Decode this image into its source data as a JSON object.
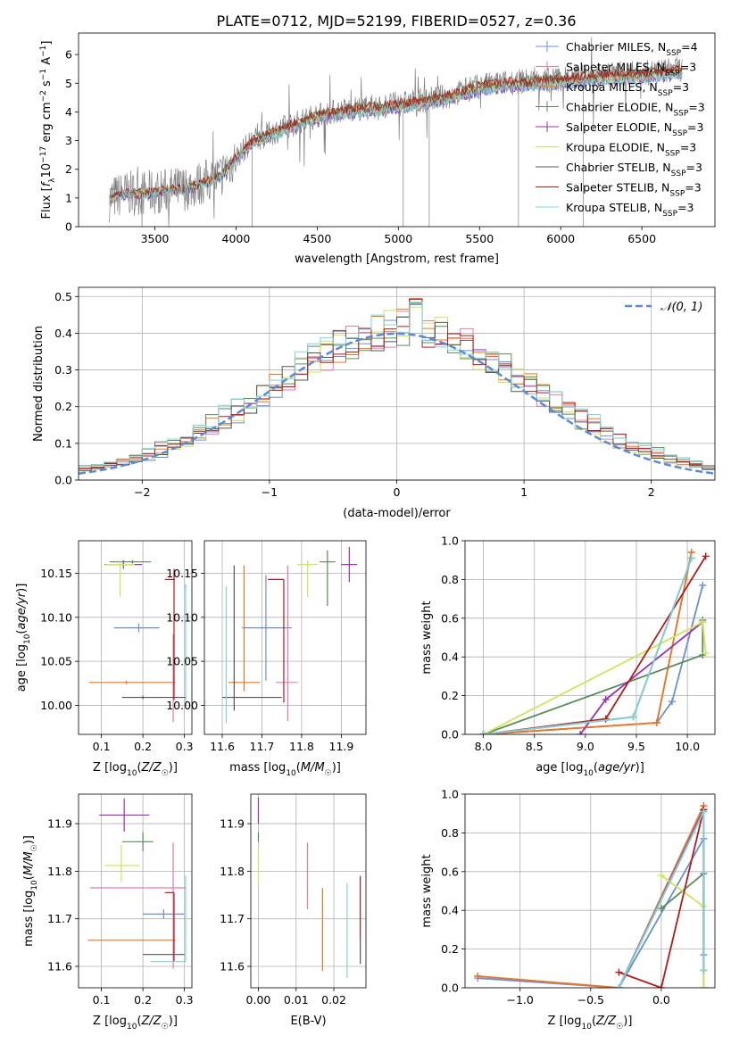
{
  "figure_title": "PLATE=0712, MJD=52199, FIBERID=0527, z=0.36",
  "colors": {
    "chabrier_miles": "#6a8fd6",
    "salpeter_miles": "#e07bb0",
    "kroupa_miles": "#e8771e",
    "chabrier_elodie": "#5a8a5a",
    "salpeter_elodie": "#9b2fb0",
    "kroupa_elodie": "#cde55a",
    "chabrier_stelib": "#555555",
    "salpeter_stelib": "#b51a1a",
    "kroupa_stelib": "#7fd3d8",
    "data": "#808080",
    "grid": "#b0b0b0"
  },
  "chart_data": [
    {
      "type": "line",
      "id": "spectrum",
      "xlabel": "wavelength [Angstrom, rest frame]",
      "ylabel": "Flux [f_λ 10^-17 erg cm^-2 s^-1 A^-1]",
      "xlim": [
        3030,
        6950
      ],
      "ylim": [
        0,
        6.75
      ],
      "xticks": [
        3500,
        4000,
        4500,
        5000,
        5500,
        6000,
        6500
      ],
      "yticks": [
        0,
        1,
        2,
        3,
        4,
        5,
        6
      ],
      "grid": false,
      "legend_position": "right",
      "continuum": {
        "x": [
          3220,
          3300,
          3500,
          3700,
          3900,
          4000,
          4100,
          4300,
          4500,
          4700,
          4900,
          5100,
          5300,
          5500,
          5700,
          5900,
          6100,
          6300,
          6500,
          6750
        ],
        "y": [
          0.95,
          1.15,
          1.2,
          1.35,
          1.75,
          2.4,
          3.0,
          3.45,
          3.9,
          4.1,
          4.2,
          4.35,
          4.55,
          4.9,
          5.05,
          5.1,
          5.2,
          5.3,
          5.35,
          5.5
        ]
      },
      "series": [
        {
          "name": "Chabrier MILES, N_SSP=4",
          "color_key": "chabrier_miles"
        },
        {
          "name": "Salpeter MILES, N_SSP=3",
          "color_key": "salpeter_miles"
        },
        {
          "name": "Kroupa MILES, N_SSP=3",
          "color_key": "kroupa_miles"
        },
        {
          "name": "Chabrier ELODIE, N_SSP=3",
          "color_key": "chabrier_elodie"
        },
        {
          "name": "Salpeter ELODIE, N_SSP=3",
          "color_key": "salpeter_elodie"
        },
        {
          "name": "Kroupa ELODIE, N_SSP=3",
          "color_key": "kroupa_elodie"
        },
        {
          "name": "Chabrier STELIB, N_SSP=3",
          "color_key": "chabrier_stelib"
        },
        {
          "name": "Salpeter STELIB, N_SSP=3",
          "color_key": "salpeter_stelib"
        },
        {
          "name": "Kroupa STELIB, N_SSP=3",
          "color_key": "kroupa_stelib"
        }
      ]
    },
    {
      "type": "line",
      "id": "residuals",
      "xlabel": "(data-model)/error",
      "ylabel": "Normed distribution",
      "xlim": [
        -2.5,
        2.5
      ],
      "ylim": [
        0,
        0.525
      ],
      "xticks": [
        -2,
        -1,
        0,
        1,
        2
      ],
      "yticks": [
        0.0,
        0.1,
        0.2,
        0.3,
        0.4,
        0.5
      ],
      "grid": true,
      "legend_position": "top-right",
      "reference": {
        "name": "𝒩(0, 1)",
        "mean": 0,
        "sigma": 1
      },
      "histogram": {
        "bin_edges_start": -2.5,
        "bin_width": 0.1,
        "nbins": 50,
        "shape_sigma": 1.05,
        "shape_mean": 0.05,
        "shape_peak": 0.4
      }
    },
    {
      "type": "scatter",
      "id": "age_vs_Z",
      "xlabel": "Z [log10(Z/Z☉)]",
      "ylabel": "age [log10(age/yr)]",
      "xlim": [
        0.045,
        0.318
      ],
      "ylim": [
        9.967,
        10.187
      ],
      "xticks": [
        0.1,
        0.2,
        0.3
      ],
      "yticks": [
        10.0,
        10.05,
        10.1,
        10.15
      ],
      "grid": true,
      "points": [
        {
          "key": "chabrier_miles",
          "x": 0.19,
          "y": 10.088,
          "xerr": [
            0.06,
            0.05
          ],
          "yerr": [
            0.005,
            0.005
          ]
        },
        {
          "key": "salpeter_miles",
          "x": 0.273,
          "y": 10.026,
          "xerr": [
            0.005,
            0.005
          ],
          "yerr": [
            0.045,
            0.055
          ]
        },
        {
          "key": "kroupa_miles",
          "x": 0.16,
          "y": 10.026,
          "xerr": [
            0.09,
            0.11
          ],
          "yerr": [
            0.002,
            0.002
          ]
        },
        {
          "key": "chabrier_elodie",
          "x": 0.175,
          "y": 10.163,
          "xerr": [
            0.055,
            0.045
          ],
          "yerr": [
            0.002,
            0.002
          ]
        },
        {
          "key": "salpeter_elodie",
          "x": 0.153,
          "y": 10.16,
          "xerr": [
            0.045,
            0.045
          ],
          "yerr": [
            0.005,
            0.005
          ]
        },
        {
          "key": "kroupa_elodie",
          "x": 0.145,
          "y": 10.16,
          "xerr": [
            0.035,
            0.035
          ],
          "yerr": [
            0.037,
            0.005
          ]
        },
        {
          "key": "chabrier_stelib",
          "x": 0.2,
          "y": 10.009,
          "xerr": [
            0.05,
            0.105
          ],
          "yerr": [
            0.002,
            0.002
          ]
        },
        {
          "key": "salpeter_stelib",
          "x": 0.275,
          "y": 10.143,
          "xerr": [
            0.022,
            0.002
          ],
          "yerr": [
            0.137,
            0.012
          ]
        },
        {
          "key": "kroupa_stelib",
          "x": 0.303,
          "y": 10.135,
          "xerr": [
            0.002,
            0.002
          ],
          "yerr": [
            0.135,
            0.003
          ]
        }
      ]
    },
    {
      "type": "scatter",
      "id": "age_vs_mass",
      "xlabel": "mass [log10(M/M☉)]",
      "ylabel": "",
      "xlim": [
        11.555,
        11.962
      ],
      "ylim": [
        9.967,
        10.187
      ],
      "xticks": [
        11.6,
        11.7,
        11.8,
        11.9
      ],
      "yticks": [
        10.0,
        10.05,
        10.1,
        10.15
      ],
      "grid": true,
      "points": [
        {
          "key": "chabrier_miles",
          "x": 11.71,
          "y": 10.088,
          "xerr": [
            0.06,
            0.065
          ],
          "yerr": [
            0.06,
            0.06
          ]
        },
        {
          "key": "salpeter_miles",
          "x": 11.765,
          "y": 10.026,
          "xerr": [
            0.03,
            0.025
          ],
          "yerr": [
            0.044,
            0.133
          ]
        },
        {
          "key": "kroupa_miles",
          "x": 11.655,
          "y": 10.026,
          "xerr": [
            0.04,
            0.04
          ],
          "yerr": [
            0.01,
            0.133
          ]
        },
        {
          "key": "chabrier_elodie",
          "x": 11.865,
          "y": 10.163,
          "xerr": [
            0.02,
            0.02
          ],
          "yerr": [
            0.05,
            0.013
          ]
        },
        {
          "key": "salpeter_elodie",
          "x": 11.92,
          "y": 10.16,
          "xerr": [
            0.02,
            0.02
          ],
          "yerr": [
            0.02,
            0.02
          ]
        },
        {
          "key": "kroupa_elodie",
          "x": 11.815,
          "y": 10.16,
          "xerr": [
            0.025,
            0.025
          ],
          "yerr": [
            0.037,
            0.005
          ]
        },
        {
          "key": "chabrier_stelib",
          "x": 11.63,
          "y": 10.009,
          "xerr": [
            0.03,
            0.12
          ],
          "yerr": [
            0.015,
            0.15
          ]
        },
        {
          "key": "salpeter_stelib",
          "x": 11.755,
          "y": 10.143,
          "xerr": [
            0.04,
            0.0
          ],
          "yerr": [
            0.14,
            0.0
          ]
        },
        {
          "key": "kroupa_stelib",
          "x": 11.61,
          "y": 10.135,
          "xerr": [
            0.0,
            0.0
          ],
          "yerr": [
            0.155,
            0.0
          ]
        }
      ]
    },
    {
      "type": "line",
      "id": "massweight_vs_age",
      "xlabel": "age [log10(age/yr)]",
      "ylabel": "mass weight",
      "xlim": [
        7.82,
        10.27
      ],
      "ylim": [
        0,
        1.0
      ],
      "xticks": [
        8.0,
        8.5,
        9.0,
        9.5,
        10.0
      ],
      "yticks": [
        0.0,
        0.2,
        0.4,
        0.6,
        0.8,
        1.0
      ],
      "grid": true,
      "series": [
        {
          "key": "chabrier_miles",
          "x": [
            8.0,
            9.7,
            9.85,
            10.15
          ],
          "y": [
            0.0,
            0.06,
            0.17,
            0.77
          ]
        },
        {
          "key": "salpeter_miles",
          "x": [
            8.0,
            9.7,
            10.04
          ],
          "y": [
            0.0,
            0.06,
            0.94
          ]
        },
        {
          "key": "kroupa_miles",
          "x": [
            8.0,
            9.7,
            10.04
          ],
          "y": [
            0.0,
            0.06,
            0.94
          ]
        },
        {
          "key": "chabrier_elodie",
          "x": [
            8.0,
            10.15,
            10.15
          ],
          "y": [
            0.0,
            0.41,
            0.59
          ]
        },
        {
          "key": "salpeter_elodie",
          "x": [
            8.95,
            9.2,
            10.15
          ],
          "y": [
            0.0,
            0.18,
            0.58
          ]
        },
        {
          "key": "kroupa_elodie",
          "x": [
            8.0,
            10.15,
            10.18
          ],
          "y": [
            0.0,
            0.58,
            0.42
          ]
        },
        {
          "key": "chabrier_stelib",
          "x": [
            8.0,
            9.47,
            10.04
          ],
          "y": [
            0.0,
            0.09,
            0.91
          ]
        },
        {
          "key": "salpeter_stelib",
          "x": [
            8.0,
            9.2,
            10.18
          ],
          "y": [
            0.0,
            0.08,
            0.92
          ]
        },
        {
          "key": "kroupa_stelib",
          "x": [
            8.0,
            9.47,
            10.04
          ],
          "y": [
            0.0,
            0.09,
            0.91
          ]
        }
      ]
    },
    {
      "type": "scatter",
      "id": "mass_vs_Z",
      "xlabel": "Z [log10(Z/Z☉)]",
      "ylabel": "mass [log10(M/M☉)]",
      "xlim": [
        0.045,
        0.318
      ],
      "ylim": [
        11.555,
        11.962
      ],
      "xticks": [
        0.1,
        0.2,
        0.3
      ],
      "yticks": [
        11.6,
        11.7,
        11.8,
        11.9
      ],
      "grid": true,
      "points": [
        {
          "key": "chabrier_miles",
          "x": 0.25,
          "y": 11.71,
          "xerr": [
            0.05,
            0.05
          ],
          "yerr": [
            0.01,
            0.01
          ]
        },
        {
          "key": "salpeter_miles",
          "x": 0.273,
          "y": 11.765,
          "xerr": [
            0.2,
            0.03
          ],
          "yerr": [
            0.17,
            0.095
          ]
        },
        {
          "key": "kroupa_miles",
          "x": 0.273,
          "y": 11.655,
          "xerr": [
            0.205,
            0.005
          ],
          "yerr": [
            0.0,
            0.0
          ]
        },
        {
          "key": "chabrier_elodie",
          "x": 0.2,
          "y": 11.862,
          "xerr": [
            0.05,
            0.025
          ],
          "yerr": [
            0.02,
            0.02
          ]
        },
        {
          "key": "salpeter_elodie",
          "x": 0.155,
          "y": 11.918,
          "xerr": [
            0.06,
            0.06
          ],
          "yerr": [
            0.035,
            0.035
          ]
        },
        {
          "key": "kroupa_elodie",
          "x": 0.148,
          "y": 11.812,
          "xerr": [
            0.04,
            0.045
          ],
          "yerr": [
            0.035,
            0.045
          ]
        },
        {
          "key": "chabrier_stelib",
          "x": 0.3,
          "y": 11.625,
          "xerr": [
            0.1,
            0.0
          ],
          "yerr": [
            0.0,
            0.0
          ]
        },
        {
          "key": "salpeter_stelib",
          "x": 0.275,
          "y": 11.755,
          "xerr": [
            0.022,
            0.0
          ],
          "yerr": [
            0.145,
            0.0
          ]
        },
        {
          "key": "kroupa_stelib",
          "x": 0.303,
          "y": 11.61,
          "xerr": [
            0.085,
            0.0
          ],
          "yerr": [
            0.0,
            0.18
          ]
        }
      ]
    },
    {
      "type": "scatter",
      "id": "mass_vs_EBV",
      "xlabel": "E(B-V)",
      "ylabel": "",
      "xlim": [
        -0.002,
        0.0285
      ],
      "ylim": [
        11.555,
        11.962
      ],
      "xticks": [
        0.0,
        0.01,
        0.02
      ],
      "yticks": [
        11.6,
        11.7,
        11.8,
        11.9
      ],
      "grid": true,
      "points": [
        {
          "key": "salpeter_miles",
          "x": 0.013,
          "y": 11.77,
          "xerr": [
            0,
            0
          ],
          "yerr": [
            0.05,
            0.09
          ]
        },
        {
          "key": "kroupa_miles",
          "x": 0.017,
          "y": 11.68,
          "xerr": [
            0,
            0
          ],
          "yerr": [
            0.09,
            0.085
          ]
        },
        {
          "key": "salpeter_elodie",
          "x": 0.0,
          "y": 11.925,
          "xerr": [
            0,
            0
          ],
          "yerr": [
            0.025,
            0.03
          ]
        },
        {
          "key": "kroupa_elodie",
          "x": 0.0,
          "y": 11.79,
          "xerr": [
            0,
            0
          ],
          "yerr": [
            0.02,
            0.055
          ]
        },
        {
          "key": "chabrier_elodie",
          "x": 0.0,
          "y": 11.862,
          "xerr": [
            0,
            0
          ],
          "yerr": [
            0.0,
            0.02
          ]
        },
        {
          "key": "chabrier_stelib",
          "x": 0.027,
          "y": 11.655,
          "xerr": [
            0,
            0
          ],
          "yerr": [
            0.05,
            0.0
          ]
        },
        {
          "key": "salpeter_stelib",
          "x": 0.027,
          "y": 11.7,
          "xerr": [
            0,
            0
          ],
          "yerr": [
            0.045,
            0.09
          ]
        },
        {
          "key": "kroupa_stelib",
          "x": 0.0235,
          "y": 11.675,
          "xerr": [
            0,
            0
          ],
          "yerr": [
            0.1,
            0.1
          ]
        }
      ]
    },
    {
      "type": "line",
      "id": "massweight_vs_Z",
      "xlabel": "Z [log10(Z/Z☉)]",
      "ylabel": "mass weight",
      "xlim": [
        -1.39,
        0.38
      ],
      "ylim": [
        0,
        1.0
      ],
      "xticks": [
        -1.0,
        -0.5,
        0.0
      ],
      "yticks": [
        0.0,
        0.2,
        0.4,
        0.6,
        0.8,
        1.0
      ],
      "grid": true,
      "series": [
        {
          "key": "chabrier_miles",
          "x": [
            -1.3,
            -0.3,
            0.3,
            0.3
          ],
          "y": [
            0.05,
            0.0,
            0.77,
            0.17
          ]
        },
        {
          "key": "salpeter_miles",
          "x": [
            -1.3,
            -0.3,
            0.3
          ],
          "y": [
            0.06,
            0.0,
            0.94
          ]
        },
        {
          "key": "kroupa_miles",
          "x": [
            -1.3,
            -0.3,
            0.3
          ],
          "y": [
            0.06,
            0.0,
            0.94
          ]
        },
        {
          "key": "chabrier_elodie",
          "x": [
            0.0,
            0.3,
            0.3
          ],
          "y": [
            0.41,
            0.59,
            0.0
          ]
        },
        {
          "key": "salpeter_elodie",
          "x": [
            -0.3,
            0.3
          ],
          "y": [
            0.0,
            0.92
          ]
        },
        {
          "key": "kroupa_elodie",
          "x": [
            0.0,
            0.3,
            0.3
          ],
          "y": [
            0.58,
            0.42,
            0.0
          ]
        },
        {
          "key": "chabrier_stelib",
          "x": [
            -0.3,
            0.3,
            0.3
          ],
          "y": [
            0.0,
            0.91,
            0.09
          ]
        },
        {
          "key": "salpeter_stelib",
          "x": [
            -0.3,
            0.0,
            0.3
          ],
          "y": [
            0.08,
            0.0,
            0.92
          ]
        },
        {
          "key": "kroupa_stelib",
          "x": [
            -0.3,
            0.3,
            0.3
          ],
          "y": [
            0.0,
            0.91,
            0.09
          ]
        }
      ]
    }
  ]
}
